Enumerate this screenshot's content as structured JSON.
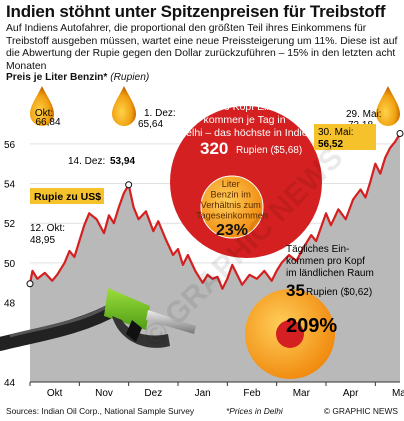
{
  "title": "Indien stöhnt unter Spitzenpreisen für Treibstoff",
  "intro": "Auf Indiens Autofahrer, die proportional den größten Teil ihres Einkommens für Treibstoff ausgeben müssen, wartet eine neue Preissteigerung um 11%. Diese ist auf die Abwertung der Rupie gegen den Dollar zurückzuführen – 15% in den letzten acht Monaten",
  "subtitle": "Preis je Liter Benzin*",
  "subtitle_unit": "(Rupien)",
  "footer": {
    "source": "Sources: Indian Oil Corp., National Sample Survey",
    "note": "*Prices in Delhi",
    "credit": "© GRAPHIC NEWS"
  },
  "watermark": "© GRAPHIC NEWS",
  "colors": {
    "red": "#d42020",
    "line": "#d42020",
    "area": "#b9b9b9",
    "orange": "#f39c12",
    "grid": "#e0e0e0"
  },
  "drops": [
    {
      "label": "Okt:",
      "value": "66,84"
    },
    {
      "label": "1. Dez:",
      "value": "65,64"
    },
    {
      "label": "29. Mai:",
      "value": "73,18"
    }
  ],
  "bubbles": {
    "income": {
      "text": "Pro Kopf Einkommen je Tag in Delhi – das höchste in Indien",
      "value": "320",
      "unit": "Rupien ($5,68)"
    },
    "share": {
      "text": "Liter Benzin im Verhältnis zum Tageseinkommen",
      "value": "23%"
    },
    "rural": {
      "text": "Tägliches Einkommen pro Kopf im ländlichen Raum",
      "value": "35",
      "unit": "Rupien ($0,62)",
      "share": "209%"
    }
  },
  "annotations": {
    "rupee": "Rupie zu US$",
    "oct12": "12. Okt:",
    "oct12_val": "48,95",
    "dec14": "14. Dez:",
    "dec14_val": "53,94",
    "may30": "30. Mai:",
    "may30_val": "56,52"
  },
  "chart_data": {
    "type": "line",
    "title": "Rupie zu US$",
    "ylim": [
      44,
      57
    ],
    "yticks": [
      "44",
      "46",
      "48",
      "50",
      "52",
      "54",
      "56"
    ],
    "xticks": [
      "Okt",
      "Nov",
      "Dez",
      "Jan",
      "Feb",
      "Mar",
      "Apr",
      "Mai"
    ],
    "grid": true,
    "x": [
      0,
      0.05,
      0.15,
      0.3,
      0.45,
      0.55,
      0.7,
      0.8,
      0.9,
      1.0,
      1.1,
      1.2,
      1.35,
      1.5,
      1.6,
      1.7,
      1.8,
      1.9,
      2.0,
      2.1,
      2.2,
      2.35,
      2.5,
      2.6,
      2.75,
      2.9,
      3.0,
      3.1,
      3.2,
      3.35,
      3.5,
      3.6,
      3.7,
      3.8,
      3.9,
      4.0,
      4.1,
      4.2,
      4.3,
      4.45,
      4.6,
      4.75,
      4.9,
      5.0,
      5.1,
      5.25,
      5.4,
      5.55,
      5.7,
      5.8,
      5.9,
      6.0,
      6.1,
      6.25,
      6.4,
      6.55,
      6.7,
      6.8,
      6.9,
      7.0,
      7.1,
      7.2,
      7.3,
      7.4,
      7.5
    ],
    "y": [
      48.95,
      49.6,
      49.2,
      49.5,
      49.1,
      49.4,
      50.0,
      50.6,
      50.3,
      51.1,
      51.9,
      52.5,
      52.2,
      51.5,
      52.4,
      52.0,
      52.8,
      53.5,
      53.94,
      52.8,
      52.2,
      52.6,
      51.6,
      52.1,
      51.2,
      50.4,
      50.7,
      49.9,
      50.4,
      49.6,
      49.0,
      49.4,
      49.2,
      49.3,
      48.7,
      49.2,
      49.9,
      49.4,
      48.9,
      49.4,
      49.2,
      49.6,
      49.1,
      49.6,
      50.0,
      50.4,
      50.1,
      50.8,
      51.4,
      51.1,
      51.8,
      52.5,
      51.9,
      52.7,
      52.2,
      53.2,
      53.7,
      53.3,
      54.1,
      55.0,
      54.5,
      55.3,
      55.8,
      56.1,
      56.52
    ]
  }
}
